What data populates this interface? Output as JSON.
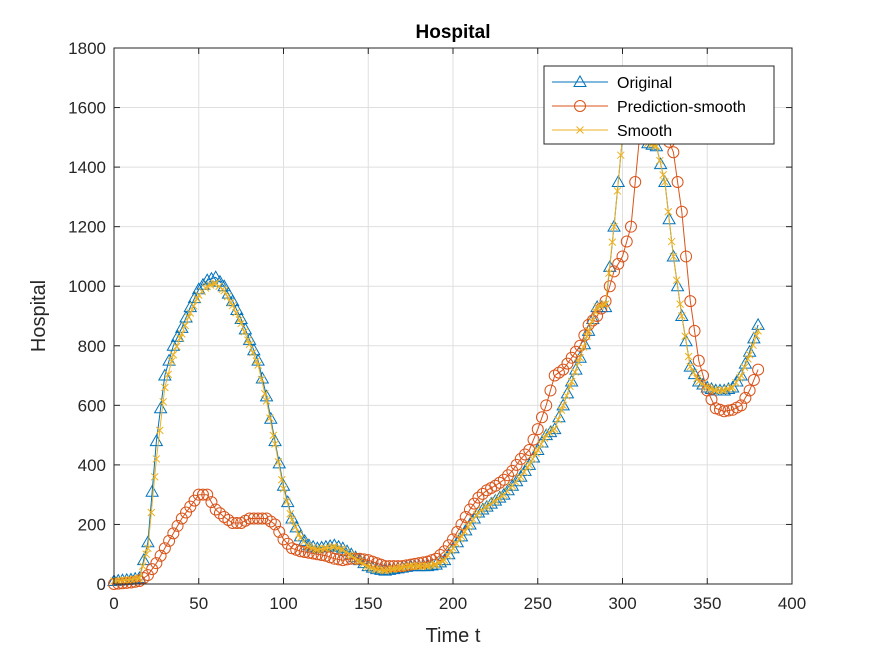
{
  "chart_data": {
    "type": "line",
    "title": "Hospital",
    "xlabel": "Time t",
    "ylabel": "Hospital",
    "xlim": [
      0,
      400
    ],
    "ylim": [
      0,
      1800
    ],
    "xticks": [
      0,
      50,
      100,
      150,
      200,
      250,
      300,
      350,
      400
    ],
    "yticks": [
      0,
      200,
      400,
      600,
      800,
      1000,
      1200,
      1400,
      1600,
      1800
    ],
    "grid": true,
    "legend_position": "top-right",
    "series": [
      {
        "name": "Original",
        "color": "#0072BD",
        "marker": "triangle",
        "x": [
          0,
          10,
          15,
          20,
          25,
          30,
          35,
          40,
          45,
          50,
          55,
          60,
          65,
          70,
          75,
          80,
          85,
          90,
          95,
          100,
          105,
          110,
          115,
          120,
          125,
          130,
          135,
          140,
          145,
          150,
          155,
          160,
          165,
          170,
          175,
          180,
          185,
          190,
          195,
          200,
          205,
          210,
          215,
          220,
          225,
          230,
          235,
          240,
          245,
          250,
          255,
          260,
          265,
          270,
          275,
          280,
          285,
          290,
          295,
          300,
          305,
          310,
          315,
          320,
          325,
          330,
          335,
          340,
          345,
          350,
          355,
          360,
          365,
          370,
          375,
          380
        ],
        "y": [
          10,
          15,
          20,
          140,
          480,
          700,
          800,
          860,
          930,
          990,
          1020,
          1030,
          1000,
          950,
          890,
          820,
          750,
          630,
          480,
          330,
          220,
          160,
          130,
          120,
          125,
          130,
          120,
          100,
          80,
          60,
          50,
          45,
          50,
          55,
          60,
          60,
          60,
          65,
          80,
          120,
          160,
          200,
          240,
          260,
          280,
          300,
          330,
          360,
          400,
          450,
          500,
          520,
          600,
          680,
          760,
          850,
          930,
          930,
          1200,
          1500,
          1540,
          1520,
          1480,
          1470,
          1350,
          1100,
          900,
          730,
          680,
          660,
          650,
          650,
          660,
          700,
          780,
          870
        ]
      },
      {
        "name": "Prediction-smooth",
        "color": "#D95319",
        "marker": "circle",
        "x": [
          0,
          10,
          15,
          20,
          25,
          30,
          35,
          40,
          45,
          50,
          55,
          60,
          65,
          70,
          75,
          80,
          85,
          90,
          95,
          100,
          105,
          110,
          115,
          120,
          125,
          130,
          135,
          140,
          145,
          150,
          155,
          160,
          165,
          170,
          175,
          180,
          185,
          190,
          195,
          200,
          205,
          210,
          215,
          220,
          225,
          230,
          235,
          240,
          245,
          250,
          255,
          260,
          265,
          270,
          275,
          280,
          285,
          290,
          295,
          300,
          305,
          310,
          315,
          320,
          325,
          330,
          335,
          340,
          345,
          350,
          355,
          360,
          365,
          370,
          375,
          380
        ],
        "y": [
          0,
          5,
          10,
          30,
          70,
          120,
          170,
          220,
          260,
          300,
          300,
          250,
          225,
          205,
          205,
          220,
          220,
          220,
          200,
          150,
          120,
          110,
          105,
          100,
          95,
          85,
          80,
          85,
          85,
          80,
          70,
          60,
          60,
          60,
          65,
          70,
          75,
          85,
          110,
          150,
          200,
          250,
          290,
          315,
          330,
          350,
          380,
          420,
          450,
          520,
          600,
          700,
          720,
          760,
          800,
          870,
          900,
          950,
          1050,
          1100,
          1200,
          1500,
          1600,
          1550,
          1520,
          1450,
          1250,
          950,
          750,
          650,
          590,
          580,
          585,
          600,
          650,
          720
        ]
      },
      {
        "name": "Smooth",
        "color": "#EDB120",
        "marker": "x",
        "x": [
          0,
          10,
          15,
          20,
          25,
          30,
          35,
          40,
          45,
          50,
          55,
          60,
          65,
          70,
          75,
          80,
          85,
          90,
          95,
          100,
          105,
          110,
          115,
          120,
          125,
          130,
          135,
          140,
          145,
          150,
          155,
          160,
          165,
          170,
          175,
          180,
          185,
          190,
          195,
          200,
          205,
          210,
          215,
          220,
          225,
          230,
          235,
          240,
          245,
          250,
          255,
          260,
          265,
          270,
          275,
          280,
          285,
          290,
          295,
          300,
          305,
          310,
          315,
          320,
          325,
          330,
          335,
          340,
          345,
          350,
          355,
          360,
          365,
          370,
          375,
          380
        ],
        "y": [
          10,
          15,
          20,
          120,
          420,
          660,
          770,
          840,
          910,
          970,
          1000,
          1010,
          985,
          935,
          875,
          805,
          735,
          615,
          470,
          320,
          215,
          155,
          125,
          115,
          120,
          125,
          115,
          95,
          75,
          57,
          48,
          45,
          50,
          55,
          60,
          60,
          60,
          65,
          80,
          120,
          160,
          200,
          240,
          260,
          280,
          300,
          330,
          360,
          400,
          450,
          500,
          520,
          600,
          680,
          760,
          850,
          930,
          940,
          1200,
          1500,
          1540,
          1520,
          1480,
          1470,
          1350,
          1100,
          900,
          730,
          680,
          660,
          650,
          650,
          660,
          700,
          770,
          850
        ]
      }
    ]
  }
}
